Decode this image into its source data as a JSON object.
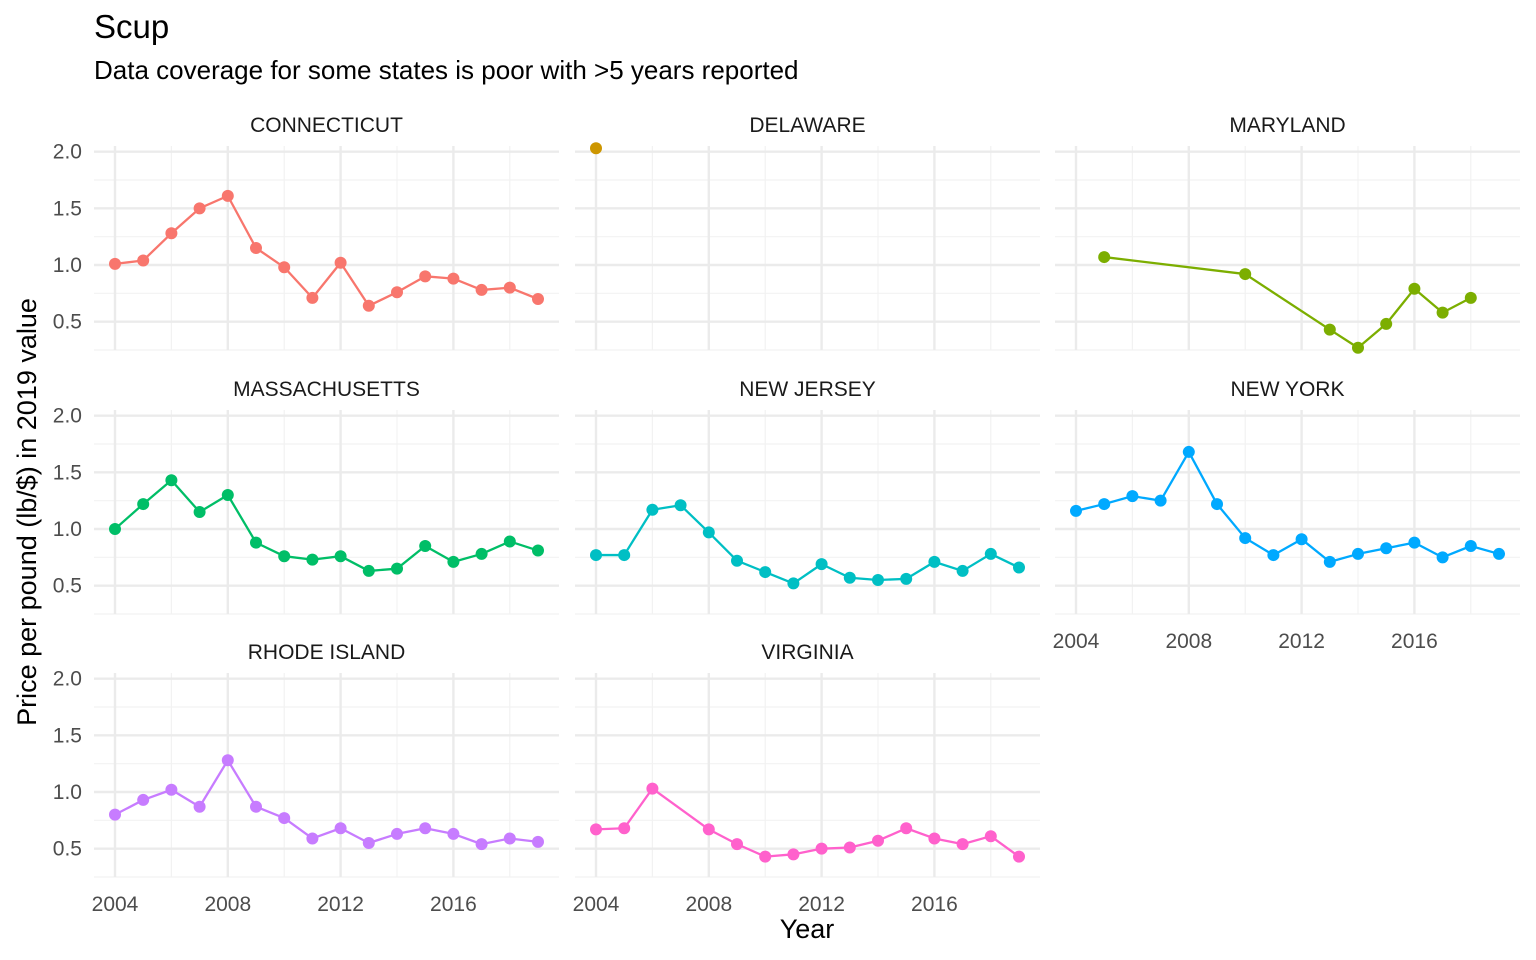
{
  "chart_data": {
    "type": "line",
    "title": "Scup",
    "subtitle": "Data coverage for some states is poor with >5 years reported",
    "xlabel": "Year",
    "ylabel": "Price per pound (lb/$) in 2019 value",
    "xlim": [
      2004,
      2019
    ],
    "ylim": [
      0.25,
      2.05
    ],
    "x_ticks": [
      "2004",
      "2008",
      "2012",
      "2016"
    ],
    "y_ticks": [
      "0.5",
      "1.0",
      "1.5",
      "2.0"
    ],
    "grid": true,
    "legend": "none",
    "facets": [
      {
        "name": "CONNECTICUT",
        "color": "#F8766D",
        "x": [
          2004,
          2005,
          2006,
          2007,
          2008,
          2009,
          2010,
          2011,
          2012,
          2013,
          2014,
          2015,
          2016,
          2017,
          2018,
          2019
        ],
        "y": [
          1.01,
          1.04,
          1.28,
          1.5,
          1.61,
          1.15,
          0.98,
          0.71,
          1.02,
          0.64,
          0.76,
          0.9,
          0.88,
          0.78,
          0.8,
          0.7
        ]
      },
      {
        "name": "DELAWARE",
        "color": "#CD9600",
        "x": [
          2004
        ],
        "y": [
          2.03
        ]
      },
      {
        "name": "MARYLAND",
        "color": "#7CAE00",
        "x": [
          2005,
          2010,
          2013,
          2014,
          2015,
          2016,
          2017,
          2018
        ],
        "y": [
          1.07,
          0.92,
          0.43,
          0.27,
          0.48,
          0.79,
          0.58,
          0.71
        ]
      },
      {
        "name": "MASSACHUSETTS",
        "color": "#00BE67",
        "x": [
          2004,
          2005,
          2006,
          2007,
          2008,
          2009,
          2010,
          2011,
          2012,
          2013,
          2014,
          2015,
          2016,
          2017,
          2018,
          2019
        ],
        "y": [
          1.0,
          1.22,
          1.43,
          1.15,
          1.3,
          0.88,
          0.76,
          0.73,
          0.76,
          0.63,
          0.65,
          0.85,
          0.71,
          0.78,
          0.89,
          0.81
        ]
      },
      {
        "name": "NEW JERSEY",
        "color": "#00BFC4",
        "x": [
          2004,
          2005,
          2006,
          2007,
          2008,
          2009,
          2010,
          2011,
          2012,
          2013,
          2014,
          2015,
          2016,
          2017,
          2018,
          2019
        ],
        "y": [
          0.77,
          0.77,
          1.17,
          1.21,
          0.97,
          0.72,
          0.62,
          0.52,
          0.69,
          0.57,
          0.55,
          0.56,
          0.71,
          0.63,
          0.78,
          0.66
        ]
      },
      {
        "name": "NEW YORK",
        "color": "#00A9FF",
        "x": [
          2004,
          2005,
          2006,
          2007,
          2008,
          2009,
          2010,
          2011,
          2012,
          2013,
          2014,
          2015,
          2016,
          2017,
          2018,
          2019
        ],
        "y": [
          1.16,
          1.22,
          1.29,
          1.25,
          1.68,
          1.22,
          0.92,
          0.77,
          0.91,
          0.71,
          0.78,
          0.83,
          0.88,
          0.75,
          0.85,
          0.78
        ]
      },
      {
        "name": "RHODE ISLAND",
        "color": "#C77CFF",
        "x": [
          2004,
          2005,
          2006,
          2007,
          2008,
          2009,
          2010,
          2011,
          2012,
          2013,
          2014,
          2015,
          2016,
          2017,
          2018,
          2019
        ],
        "y": [
          0.8,
          0.93,
          1.02,
          0.87,
          1.28,
          0.87,
          0.77,
          0.59,
          0.68,
          0.55,
          0.63,
          0.68,
          0.63,
          0.54,
          0.59,
          0.56
        ]
      },
      {
        "name": "VIRGINIA",
        "color": "#FF61CC",
        "x": [
          2004,
          2005,
          2006,
          2008,
          2009,
          2010,
          2011,
          2012,
          2013,
          2014,
          2015,
          2016,
          2017,
          2018,
          2019
        ],
        "y": [
          0.67,
          0.68,
          1.03,
          0.67,
          0.54,
          0.43,
          0.45,
          0.5,
          0.51,
          0.57,
          0.68,
          0.59,
          0.54,
          0.61,
          0.43
        ]
      }
    ]
  }
}
